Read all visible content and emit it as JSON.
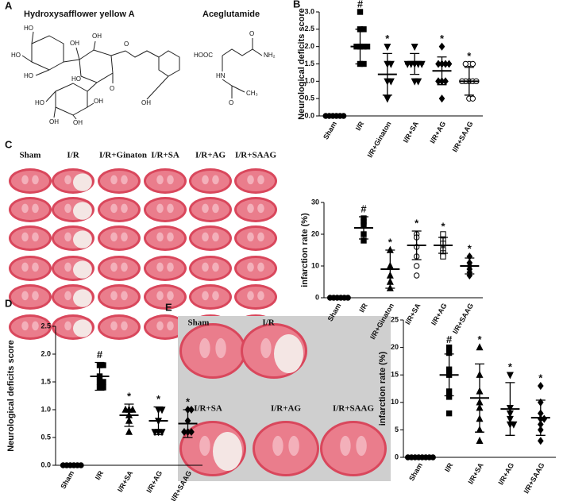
{
  "panels": {
    "a": "A",
    "c": "C",
    "e": "E"
  },
  "structures": {
    "hsya": {
      "name": "Hydroxysafflower yellow A",
      "atoms": [
        "HO",
        "HO",
        "HO",
        "OH",
        "OH",
        "O",
        "HO",
        "O",
        "OH",
        "HO",
        "OH",
        "OH",
        "OH"
      ]
    },
    "ag": {
      "name": "Aceglutamide",
      "atoms": [
        "O",
        "HOOC",
        "NH₂",
        "HN",
        "O",
        "CH₃"
      ]
    }
  },
  "photos_c": [
    "Sham",
    "I/R",
    "I/R+Ginaton",
    "I/R+SA",
    "I/R+AG",
    "I/R+SAAG"
  ],
  "photos_e": [
    "Sham",
    "I/R",
    "I/R+SA",
    "I/R+AG",
    "I/R+SAAG"
  ],
  "chart_data": [
    {
      "type": "dotplot",
      "label": "B",
      "ylabel": "Neurological deficits score",
      "categories": [
        "Sham",
        "I/R",
        "I/R+Ginaton",
        "I/R+SA",
        "I/R+AG",
        "I/R+SAAG"
      ],
      "values": [
        0,
        2.0,
        1.2,
        1.5,
        1.3,
        1.0
      ],
      "errors": [
        0,
        0.5,
        0.6,
        0.3,
        0.4,
        0.4
      ],
      "points": [
        [
          0,
          0,
          0,
          0,
          0,
          0
        ],
        [
          3,
          2.5,
          2.5,
          2,
          2,
          2,
          2,
          1.5,
          1.5
        ],
        [
          2,
          1.5,
          1.5,
          1,
          1,
          0.5
        ],
        [
          2,
          1.5,
          1.5,
          1.5,
          1.5,
          1,
          1,
          1.5
        ],
        [
          2,
          1.5,
          1.5,
          1.5,
          1,
          1,
          1,
          0.5,
          1.5
        ],
        [
          1.5,
          1.5,
          1,
          1,
          1,
          1,
          1,
          0.5,
          0.5,
          1.5
        ]
      ],
      "annotations": [
        null,
        "#",
        "*",
        null,
        "*",
        "*"
      ],
      "markers": [
        "circle",
        "square",
        "triangle-down",
        "triangle-down",
        "diamond",
        "open-circle"
      ],
      "ylim": [
        0,
        3
      ],
      "yticks": [
        {
          "value": 0,
          "label": "0.0"
        },
        {
          "value": 0.5,
          "label": "0.5"
        },
        {
          "value": 1,
          "label": "1.0"
        },
        {
          "value": 1.5,
          "label": "1.5"
        },
        {
          "value": 2,
          "label": "2.0"
        },
        {
          "value": 2.5,
          "label": "2.5"
        },
        {
          "value": 3,
          "label": "3.0"
        }
      ]
    },
    {
      "type": "dotplot",
      "ylabel": "infarction rate (%)",
      "categories": [
        "Sham",
        "I/R",
        "I/R+Ginaton",
        "I/R+SA",
        "I/R+AG",
        "I/R+SAAG"
      ],
      "values": [
        0,
        22,
        9,
        16.5,
        16.5,
        10
      ],
      "errors": [
        0,
        3.5,
        6,
        4.5,
        2.5,
        2.5
      ],
      "points": [
        [
          0,
          0,
          0,
          0,
          0,
          0
        ],
        [
          25,
          24,
          23,
          20,
          18
        ],
        [
          15,
          10,
          7,
          5,
          3
        ],
        [
          20,
          19,
          16,
          13,
          10,
          7
        ],
        [
          20,
          18,
          17,
          15,
          14,
          13
        ],
        [
          13,
          11,
          10,
          9,
          8,
          7
        ]
      ],
      "annotations": [
        null,
        "#",
        "*",
        "*",
        "*",
        "*"
      ],
      "markers": [
        "circle",
        "square",
        "triangle-up",
        "open-circle",
        "open-square",
        "diamond"
      ],
      "ylim": [
        0,
        30
      ],
      "yticks": [
        0,
        10,
        20,
        30
      ]
    },
    {
      "type": "dotplot",
      "label": "D",
      "ylabel": "Neurological deficits score",
      "categories": [
        "Sham",
        "I/R",
        "I/R+SA",
        "I/R+AG",
        "I/R+SAAG"
      ],
      "values": [
        0,
        1.6,
        0.9,
        0.8,
        0.75
      ],
      "errors": [
        0,
        0.25,
        0.2,
        0.25,
        0.25
      ],
      "points": [
        [
          0,
          0,
          0,
          0,
          0,
          0
        ],
        [
          1.8,
          1.8,
          1.6,
          1.5,
          1.5,
          1.4,
          1.4
        ],
        [
          1,
          1,
          1,
          0.9,
          0.8,
          0.6
        ],
        [
          1,
          1,
          0.8,
          0.6,
          0.6,
          0.6
        ],
        [
          1,
          1,
          0.8,
          0.6,
          0.6,
          0.6
        ]
      ],
      "annotations": [
        null,
        "#",
        "*",
        "*",
        "*"
      ],
      "markers": [
        "circle",
        "square",
        "triangle-up",
        "triangle-down",
        "diamond"
      ],
      "ylim": [
        0,
        2.5
      ],
      "yticks": [
        {
          "value": 0,
          "label": "0.0"
        },
        {
          "value": 0.5,
          "label": "0.5"
        },
        {
          "value": 1,
          "label": "1.0"
        },
        {
          "value": 1.5,
          "label": "1.5"
        },
        {
          "value": 2,
          "label": "2.0"
        },
        {
          "value": 2.5,
          "label": "2.5"
        }
      ]
    },
    {
      "type": "dotplot",
      "ylabel": "infarction rate (%)",
      "categories": [
        "Sham",
        "I/R",
        "I/R+SA",
        "I/R+AG",
        "I/R+SAAG"
      ],
      "values": [
        0,
        15,
        10.8,
        8.8,
        7.2
      ],
      "errors": [
        0,
        3.8,
        6.2,
        4.8,
        3.2
      ],
      "points": [
        [
          0,
          0,
          0,
          0,
          0,
          0,
          0,
          0
        ],
        [
          20,
          19,
          16,
          15,
          12,
          11,
          8
        ],
        [
          20,
          15,
          12,
          10,
          9,
          7,
          5,
          3
        ],
        [
          15,
          9,
          8,
          7,
          6,
          6
        ],
        [
          13,
          10,
          8,
          7,
          7,
          6,
          5,
          3
        ]
      ],
      "annotations": [
        null,
        "#",
        "*",
        "*",
        "*"
      ],
      "markers": [
        "circle",
        "square",
        "triangle-up",
        "triangle-down",
        "diamond"
      ],
      "ylim": [
        0,
        25
      ],
      "yticks": [
        0,
        5,
        10,
        15,
        20,
        25
      ]
    }
  ]
}
